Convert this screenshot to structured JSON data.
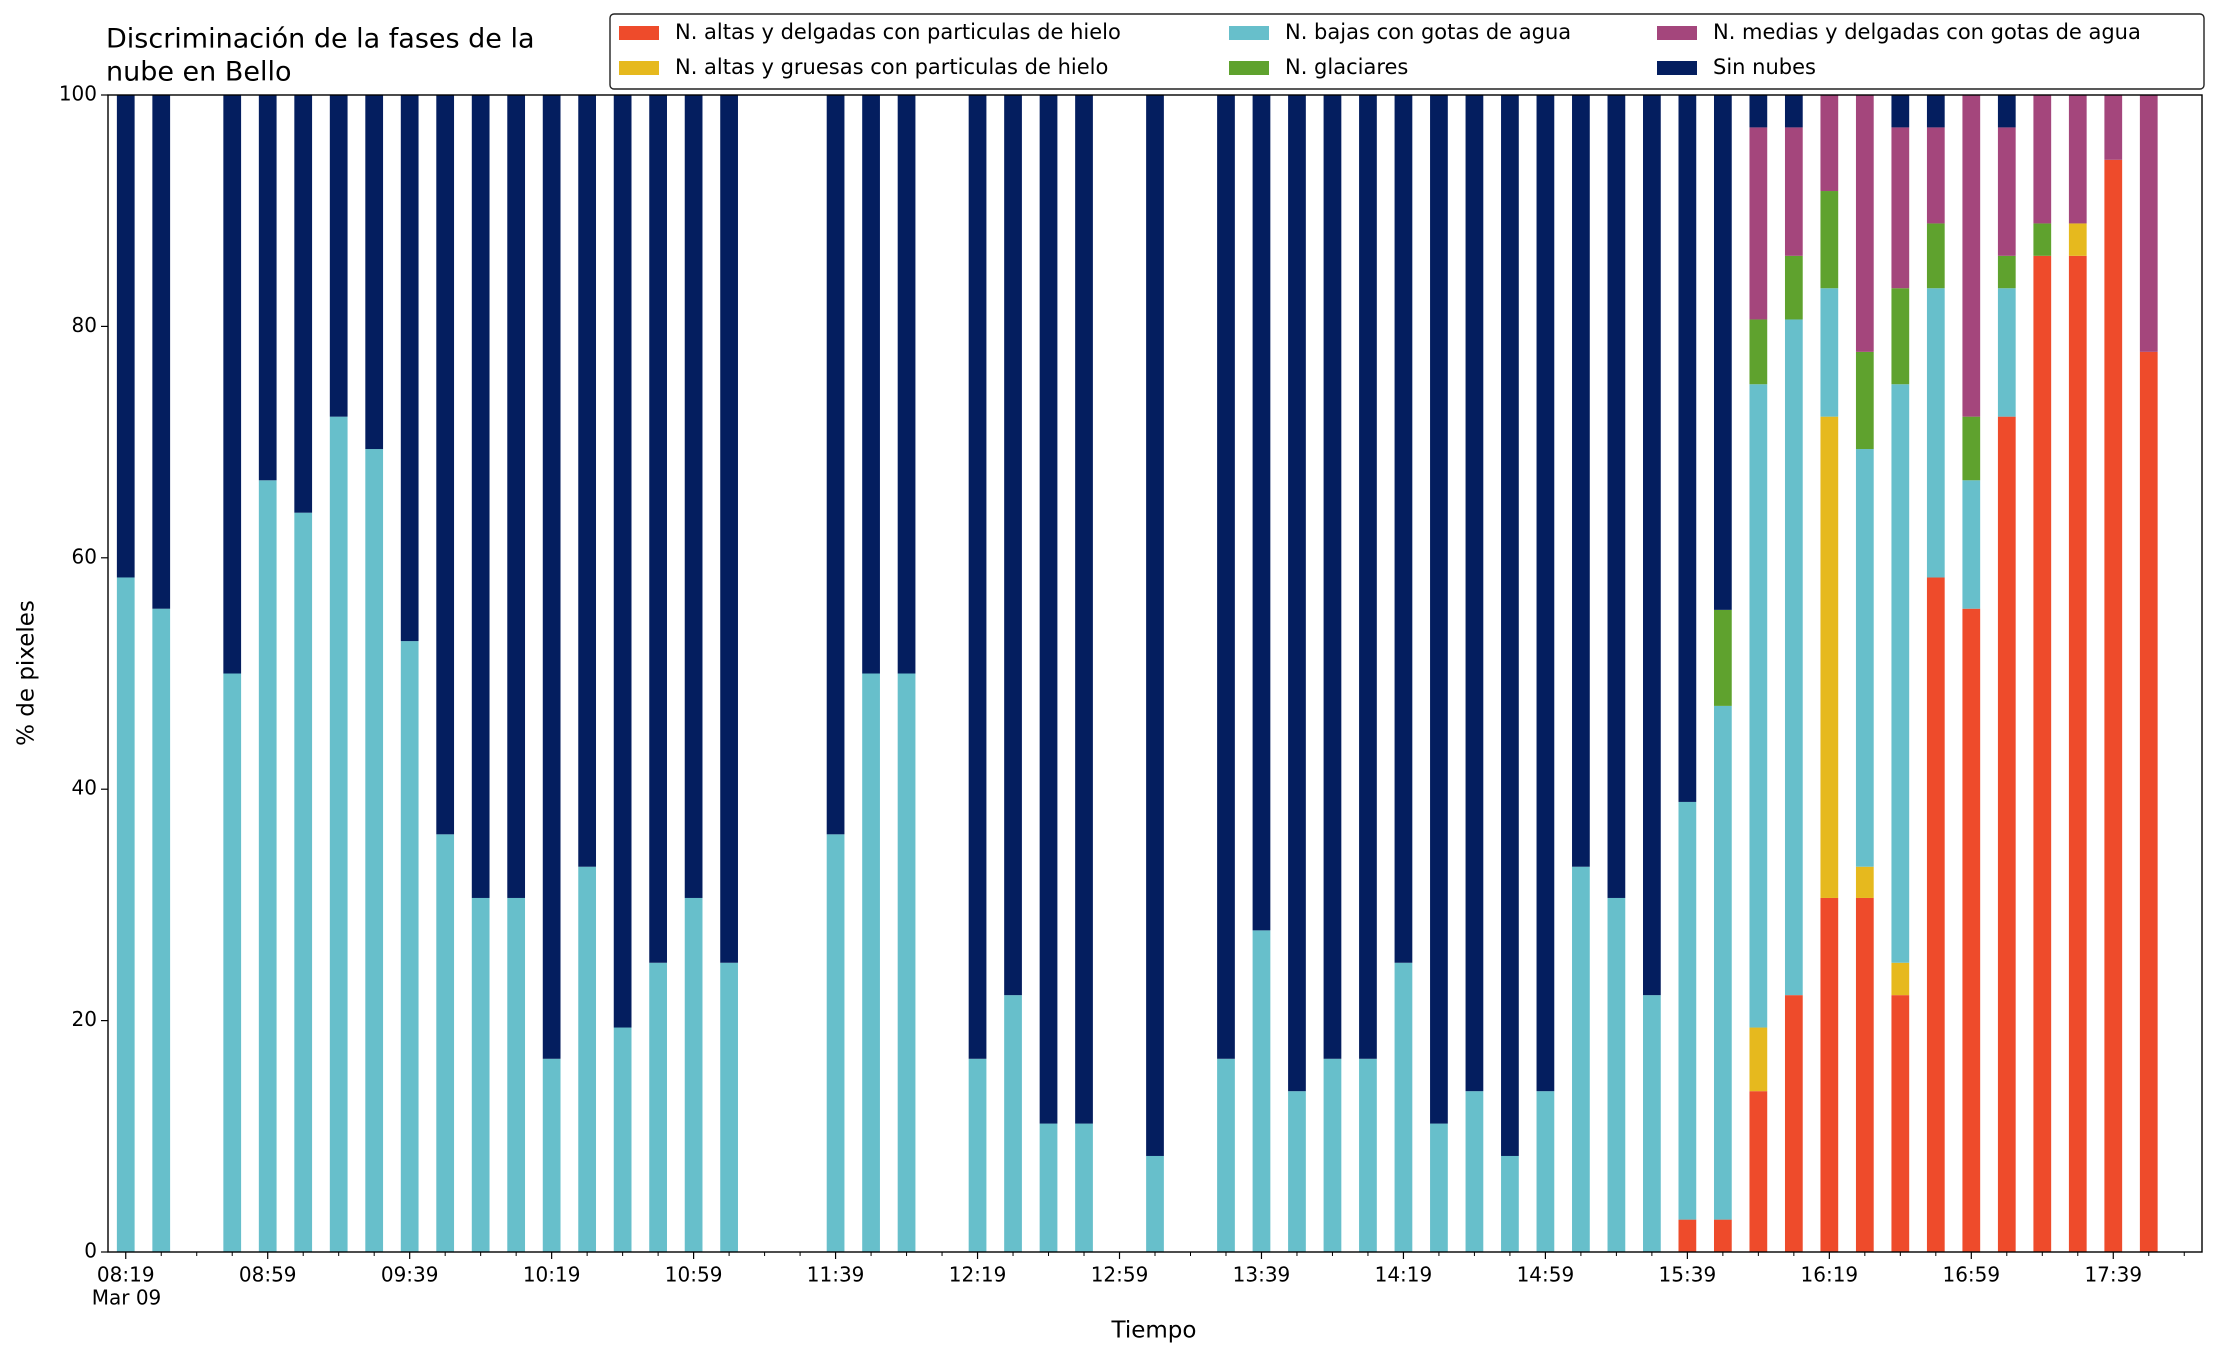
{
  "chart_data": {
    "type": "stacked_bar",
    "title": [
      "Discriminación de la fases de la",
      "nube en Bello"
    ],
    "xlabel": "Tiempo",
    "ylabel": "% de pixeles",
    "x_date_label": "Mar 09",
    "xlim": [
      "08:14",
      "18:04"
    ],
    "xticks": [
      "08:19",
      "08:59",
      "09:39",
      "10:19",
      "10:59",
      "11:39",
      "12:19",
      "12:59",
      "13:39",
      "14:19",
      "14:59",
      "15:39",
      "16:19",
      "16:59",
      "17:39"
    ],
    "xminorticks": [
      "08:29",
      "08:39",
      "08:49",
      "09:09",
      "09:19",
      "09:29",
      "09:49",
      "09:59",
      "10:09",
      "10:29",
      "10:39",
      "10:49",
      "11:09",
      "11:19",
      "11:29",
      "11:49",
      "11:59",
      "12:09",
      "12:29",
      "12:39",
      "12:49",
      "13:09",
      "13:19",
      "13:29",
      "13:49",
      "13:59",
      "14:09",
      "14:29",
      "14:39",
      "14:49",
      "15:09",
      "15:19",
      "15:29",
      "15:49",
      "15:59",
      "16:09",
      "16:29",
      "16:39",
      "16:49",
      "17:09",
      "17:19",
      "17:29",
      "17:49",
      "17:59"
    ],
    "ylim": [
      0,
      100
    ],
    "yticks": [
      0,
      20,
      40,
      60,
      80,
      100
    ],
    "bar_width_minutes": 5,
    "x": [
      "08:19",
      "08:29",
      "08:49",
      "08:59",
      "09:09",
      "09:19",
      "09:29",
      "09:39",
      "09:49",
      "09:59",
      "10:09",
      "10:19",
      "10:29",
      "10:39",
      "10:49",
      "10:59",
      "11:09",
      "11:39",
      "11:49",
      "11:59",
      "12:19",
      "12:29",
      "12:39",
      "12:49",
      "13:09",
      "13:29",
      "13:39",
      "13:49",
      "13:59",
      "14:09",
      "14:19",
      "14:29",
      "14:39",
      "14:49",
      "14:59",
      "15:09",
      "15:19",
      "15:29",
      "15:39",
      "15:49",
      "15:59",
      "16:09",
      "16:19",
      "16:29",
      "16:39",
      "16:49",
      "16:59",
      "17:09",
      "17:19",
      "17:29",
      "17:39",
      "17:49"
    ],
    "series": [
      {
        "name": "N. altas y delgadas con particulas de hielo",
        "color": "#ee4b2b",
        "values": [
          0,
          0,
          0,
          0,
          0,
          0,
          0,
          0,
          0,
          0,
          0,
          0,
          0,
          0,
          0,
          0,
          0,
          0,
          0,
          0,
          0,
          0,
          0,
          0,
          0,
          0,
          0,
          0,
          0,
          0,
          0,
          0,
          0,
          0,
          0,
          0,
          0,
          0,
          2.8,
          2.8,
          13.9,
          22.2,
          30.6,
          30.6,
          22.2,
          58.3,
          55.6,
          72.2,
          86.1,
          86.1,
          94.4,
          77.8
        ]
      },
      {
        "name": "N. altas y gruesas con particulas de hielo",
        "color": "#e6b91e",
        "values": [
          0,
          0,
          0,
          0,
          0,
          0,
          0,
          0,
          0,
          0,
          0,
          0,
          0,
          0,
          0,
          0,
          0,
          0,
          0,
          0,
          0,
          0,
          0,
          0,
          0,
          0,
          0,
          0,
          0,
          0,
          0,
          0,
          0,
          0,
          0,
          0,
          0,
          0,
          0,
          0,
          5.5,
          0,
          41.6,
          2.7,
          2.8,
          0,
          0,
          0,
          0,
          2.8,
          0,
          0
        ]
      },
      {
        "name": "N. bajas con gotas de agua",
        "color": "#67bfcb",
        "values": [
          58.3,
          55.6,
          50,
          66.7,
          63.9,
          72.2,
          69.4,
          52.8,
          36.1,
          30.6,
          30.6,
          16.7,
          33.3,
          19.4,
          25,
          30.6,
          25,
          36.1,
          50,
          50,
          16.7,
          22.2,
          11.1,
          11.1,
          8.3,
          16.7,
          27.8,
          13.9,
          16.7,
          16.7,
          25,
          11.1,
          13.9,
          8.3,
          13.9,
          33.3,
          30.6,
          22.2,
          36.1,
          44.4,
          55.6,
          58.4,
          11.1,
          36.1,
          50,
          25,
          11.1,
          11.1,
          0,
          0,
          0,
          0
        ]
      },
      {
        "name": "N. glaciares",
        "color": "#5fa22e",
        "values": [
          0,
          0,
          0,
          0,
          0,
          0,
          0,
          0,
          0,
          0,
          0,
          0,
          0,
          0,
          0,
          0,
          0,
          0,
          0,
          0,
          0,
          0,
          0,
          0,
          0,
          0,
          0,
          0,
          0,
          0,
          0,
          0,
          0,
          0,
          0,
          0,
          0,
          0,
          0,
          8.3,
          5.6,
          5.5,
          8.4,
          8.4,
          8.3,
          5.6,
          5.5,
          2.8,
          2.8,
          0,
          0,
          0
        ]
      },
      {
        "name": "N. medias y delgadas con gotas de agua",
        "color": "#a4467c",
        "values": [
          0,
          0,
          0,
          0,
          0,
          0,
          0,
          0,
          0,
          0,
          0,
          0,
          0,
          0,
          0,
          0,
          0,
          0,
          0,
          0,
          0,
          0,
          0,
          0,
          0,
          0,
          0,
          0,
          0,
          0,
          0,
          0,
          0,
          0,
          0,
          0,
          0,
          0,
          0,
          0,
          16.6,
          11.1,
          8.3,
          22.2,
          13.9,
          8.3,
          27.8,
          11.1,
          11.1,
          11.1,
          5.6,
          22.2
        ]
      },
      {
        "name": "Sin nubes",
        "color": "#041e5f",
        "values": [
          41.7,
          44.4,
          50,
          33.3,
          36.1,
          27.8,
          30.6,
          47.2,
          63.9,
          69.4,
          69.4,
          83.3,
          66.7,
          80.6,
          75,
          69.4,
          75,
          63.9,
          50,
          50,
          83.3,
          77.8,
          88.9,
          88.9,
          91.7,
          83.3,
          72.2,
          86.1,
          83.3,
          83.3,
          75,
          88.9,
          86.1,
          91.7,
          86.1,
          66.7,
          69.4,
          77.8,
          61.1,
          44.5,
          2.8,
          2.8,
          0,
          0,
          2.8,
          2.8,
          0,
          2.8,
          0,
          0,
          0,
          0
        ]
      }
    ]
  }
}
